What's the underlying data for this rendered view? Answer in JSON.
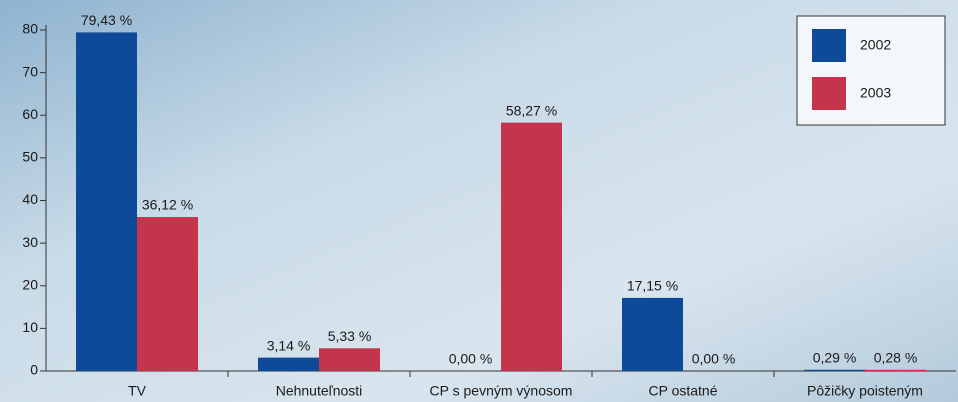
{
  "chart_data": {
    "type": "bar",
    "categories": [
      "TV",
      "Nehnuteľnosti",
      "CP s pevným výnosom",
      "CP ostatné",
      "Pôžičky poisteným"
    ],
    "series": [
      {
        "name": "2002",
        "color": "#0d4a97",
        "values": [
          79.43,
          3.14,
          0,
          17.15,
          0.29
        ],
        "value_labels": [
          "79,43 %",
          "3,14 %",
          "0,00 %",
          "17,15 %",
          "0,29 %"
        ]
      },
      {
        "name": "2003",
        "color": "#c4344b",
        "values": [
          36.12,
          5.33,
          58.27,
          0,
          0.28
        ],
        "value_labels": [
          "36,12 %",
          "5,33 %",
          "58,27 %",
          "0,00 %",
          "0,28 %"
        ]
      }
    ],
    "ylim": [
      0,
      80
    ],
    "yticks": [
      0,
      10,
      20,
      30,
      40,
      50,
      60,
      70,
      80
    ],
    "legend": "top-right"
  }
}
